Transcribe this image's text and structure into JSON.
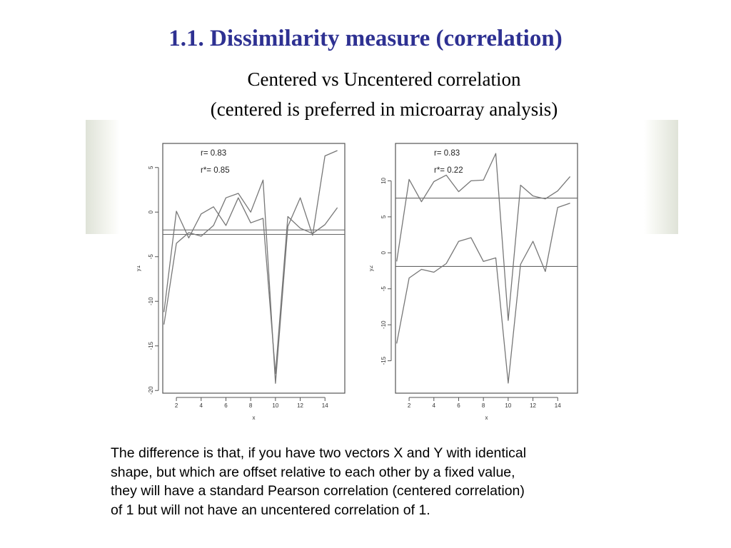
{
  "slide": {
    "title": "1.1. Dissimilarity measure (correlation)",
    "subtitle_line1": "Centered vs Uncentered correlation",
    "subtitle_line2": "(centered is preferred in microarray analysis)"
  },
  "caption": {
    "lines": [
      "The difference is that, if you have two vectors X and Y with identical",
      "shape, but which are offset relative to each other by a fixed value,",
      "they will have a standard Pearson correlation (centered correlation)",
      "of 1 but will not have an uncentered correlation of 1."
    ]
  },
  "colors": {
    "title": "#2e3192",
    "line": "#777777",
    "axis": "#555555"
  },
  "chart_data": [
    {
      "type": "line",
      "xlabel": "x",
      "ylabel": "y1",
      "xlim": [
        0.9,
        15.6
      ],
      "ylim": [
        -20.3,
        7.7
      ],
      "xticks": [
        2,
        4,
        6,
        8,
        10,
        12,
        14
      ],
      "yticks": [
        5,
        0,
        -5,
        -10,
        -15,
        -20
      ],
      "annotations": [
        "r= 0.83",
        "r*= 0.85"
      ],
      "x": [
        1,
        2,
        3,
        4,
        5,
        6,
        7,
        8,
        9,
        10,
        11,
        12,
        13,
        14,
        15
      ],
      "series": [
        {
          "values": [
            -11.2,
            0.1,
            -2.9,
            -0.2,
            0.6,
            -1.5,
            1.6,
            -1.2,
            -0.7,
            -18.1,
            -0.5,
            -1.8,
            -2.4,
            -1.4,
            0.5
          ]
        },
        {
          "values": [
            -12.6,
            -3.5,
            -2.3,
            -2.7,
            -1.5,
            1.6,
            2.1,
            0.0,
            3.6,
            -19.2,
            -1.6,
            1.6,
            -2.6,
            6.3,
            6.9
          ]
        }
      ],
      "hlines": [
        -2.0,
        -2.5
      ]
    },
    {
      "type": "line",
      "xlabel": "x",
      "ylabel": "y2",
      "xlim": [
        0.9,
        15.6
      ],
      "ylim": [
        -19.5,
        15.2
      ],
      "xticks": [
        2,
        4,
        6,
        8,
        10,
        12,
        14
      ],
      "yticks": [
        10,
        5,
        0,
        -5,
        -10,
        -15
      ],
      "annotations": [
        "r= 0.83",
        "r*= 0.22"
      ],
      "x": [
        1,
        2,
        3,
        4,
        5,
        6,
        7,
        8,
        9,
        10,
        11,
        12,
        13,
        14,
        15
      ],
      "series": [
        {
          "values": [
            -1.2,
            10.2,
            7.1,
            9.9,
            10.8,
            8.5,
            10.0,
            10.1,
            13.8,
            -9.4,
            9.4,
            7.9,
            7.5,
            8.6,
            10.6
          ]
        },
        {
          "values": [
            -12.6,
            -3.5,
            -2.3,
            -2.7,
            -1.5,
            1.6,
            2.1,
            -1.2,
            -0.7,
            -18.1,
            -1.6,
            1.6,
            -2.6,
            6.3,
            6.9
          ]
        }
      ],
      "hlines": [
        7.6,
        -1.9
      ]
    }
  ]
}
